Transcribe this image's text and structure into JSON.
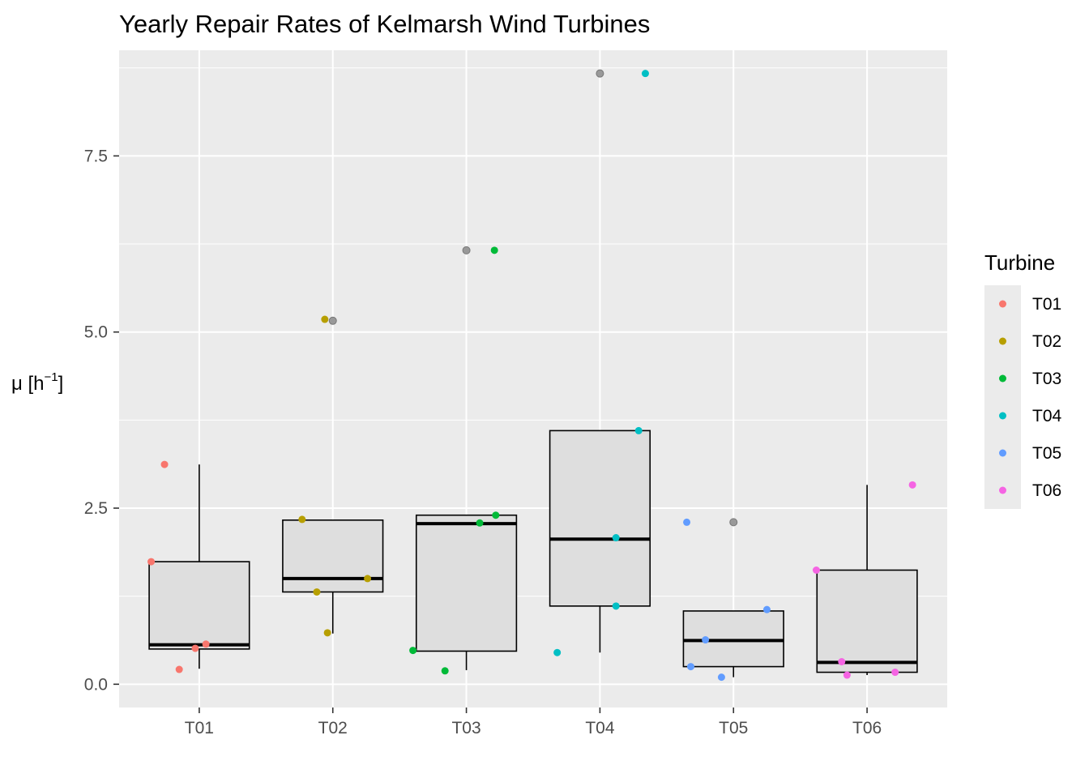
{
  "chart_data": {
    "type": "boxplot",
    "title": "Yearly Repair Rates of Kelmarsh Wind Turbines",
    "xlabel": "",
    "ylabel": "μ [h",
    "ylabel_exponent": "−1",
    "ylabel_suffix": "]",
    "ylim": [
      -0.33,
      9.0
    ],
    "y_ticks": [
      0.0,
      2.5,
      5.0,
      7.5
    ],
    "y_tick_labels": [
      "0.0",
      "2.5",
      "5.0",
      "7.5"
    ],
    "categories": [
      "T01",
      "T02",
      "T03",
      "T04",
      "T05",
      "T06"
    ],
    "grid": true,
    "legend": {
      "title": "Turbine",
      "placement": "right",
      "entries": [
        "T01",
        "T02",
        "T03",
        "T04",
        "T05",
        "T06"
      ]
    },
    "colors": {
      "T01": "#F8766D",
      "T02": "#B79F00",
      "T03": "#00BA38",
      "T04": "#00BFC4",
      "T05": "#619CFF",
      "T06": "#F564E3",
      "outlier": "#999999",
      "panel_background": "#EBEBEB",
      "box_fill": "#DEDEDE"
    },
    "boxes": [
      {
        "category": "T01",
        "lower_whisker": 0.22,
        "q1": 0.5,
        "median": 0.56,
        "q3": 1.74,
        "upper_whisker": 3.12
      },
      {
        "category": "T02",
        "lower_whisker": 0.72,
        "q1": 1.31,
        "median": 1.5,
        "q3": 2.33,
        "upper_whisker": 2.33
      },
      {
        "category": "T03",
        "lower_whisker": 0.2,
        "q1": 0.47,
        "median": 2.28,
        "q3": 2.4,
        "upper_whisker": 2.4
      },
      {
        "category": "T04",
        "lower_whisker": 0.45,
        "q1": 1.11,
        "median": 2.06,
        "q3": 3.6,
        "upper_whisker": 3.6
      },
      {
        "category": "T05",
        "lower_whisker": 0.1,
        "q1": 0.25,
        "median": 0.62,
        "q3": 1.04,
        "upper_whisker": 1.04
      },
      {
        "category": "T06",
        "lower_whisker": 0.13,
        "q1": 0.17,
        "median": 0.31,
        "q3": 1.62,
        "upper_whisker": 2.83
      }
    ],
    "outliers": [
      {
        "category": "T02",
        "y": 5.16
      },
      {
        "category": "T03",
        "y": 6.16
      },
      {
        "category": "T04",
        "y": 8.67
      },
      {
        "category": "T05",
        "y": 2.3
      }
    ],
    "points": [
      {
        "turbine": "T01",
        "x": 0.74,
        "y": 3.12
      },
      {
        "turbine": "T01",
        "x": 0.64,
        "y": 1.74
      },
      {
        "turbine": "T01",
        "x": 1.05,
        "y": 0.57
      },
      {
        "turbine": "T01",
        "x": 0.97,
        "y": 0.51
      },
      {
        "turbine": "T01",
        "x": 0.85,
        "y": 0.21
      },
      {
        "turbine": "T02",
        "x": 1.94,
        "y": 5.18
      },
      {
        "turbine": "T02",
        "x": 1.77,
        "y": 2.34
      },
      {
        "turbine": "T02",
        "x": 2.26,
        "y": 1.5
      },
      {
        "turbine": "T02",
        "x": 1.88,
        "y": 1.31
      },
      {
        "turbine": "T02",
        "x": 1.96,
        "y": 0.73
      },
      {
        "turbine": "T03",
        "x": 3.21,
        "y": 6.16
      },
      {
        "turbine": "T03",
        "x": 3.22,
        "y": 2.4
      },
      {
        "turbine": "T03",
        "x": 3.1,
        "y": 2.29
      },
      {
        "turbine": "T03",
        "x": 2.6,
        "y": 0.48
      },
      {
        "turbine": "T03",
        "x": 2.84,
        "y": 0.19
      },
      {
        "turbine": "T04",
        "x": 4.34,
        "y": 8.67
      },
      {
        "turbine": "T04",
        "x": 4.29,
        "y": 3.6
      },
      {
        "turbine": "T04",
        "x": 4.12,
        "y": 2.08
      },
      {
        "turbine": "T04",
        "x": 4.12,
        "y": 1.11
      },
      {
        "turbine": "T04",
        "x": 3.68,
        "y": 0.45
      },
      {
        "turbine": "T05",
        "x": 4.65,
        "y": 2.3
      },
      {
        "turbine": "T05",
        "x": 5.25,
        "y": 1.06
      },
      {
        "turbine": "T05",
        "x": 4.79,
        "y": 0.63
      },
      {
        "turbine": "T05",
        "x": 4.68,
        "y": 0.25
      },
      {
        "turbine": "T05",
        "x": 4.91,
        "y": 0.1
      },
      {
        "turbine": "T06",
        "x": 6.34,
        "y": 2.83
      },
      {
        "turbine": "T06",
        "x": 5.62,
        "y": 1.62
      },
      {
        "turbine": "T06",
        "x": 5.81,
        "y": 0.32
      },
      {
        "turbine": "T06",
        "x": 6.21,
        "y": 0.17
      },
      {
        "turbine": "T06",
        "x": 5.85,
        "y": 0.13
      }
    ]
  }
}
